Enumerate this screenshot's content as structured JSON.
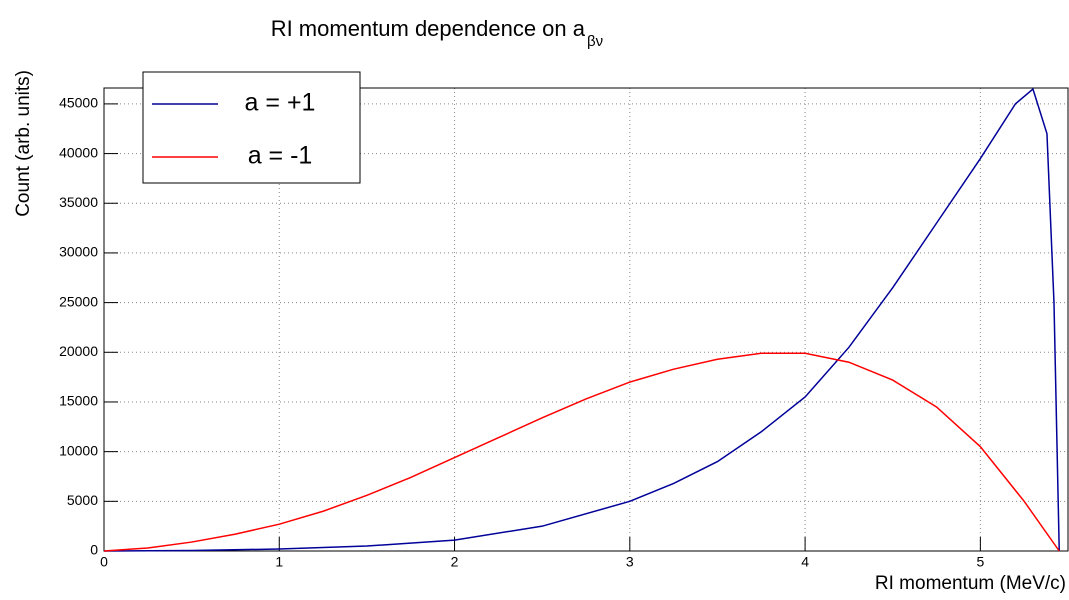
{
  "chart_data": {
    "type": "line",
    "title": "RI momentum dependence on a",
    "title_subscript": "βν",
    "x_label": "RI momentum (MeV/c)",
    "y_label": "Count (arb. units)",
    "xlim": [
      0,
      5.5
    ],
    "ylim": [
      0,
      46600
    ],
    "xticks": [
      0,
      1,
      2,
      3,
      4,
      5
    ],
    "yticks": [
      0,
      5000,
      10000,
      15000,
      20000,
      25000,
      30000,
      35000,
      40000,
      45000
    ],
    "grid": true,
    "legend": "top-left",
    "series": [
      {
        "name": "a = +1",
        "color": "#000099",
        "x": [
          0,
          0.5,
          1,
          1.5,
          2,
          2.5,
          3,
          3.25,
          3.5,
          3.75,
          4,
          4.25,
          4.5,
          4.75,
          5,
          5.2,
          5.3,
          5.38,
          5.42,
          5.45
        ],
        "values": [
          0,
          50,
          200,
          500,
          1100,
          2500,
          5000,
          6800,
          9000,
          12000,
          15500,
          20500,
          26500,
          33000,
          39500,
          45000,
          46500,
          42000,
          25000,
          0
        ]
      },
      {
        "name": "a = -1",
        "color": "#ff0000",
        "x": [
          0,
          0.25,
          0.5,
          0.75,
          1,
          1.25,
          1.5,
          1.75,
          2,
          2.25,
          2.5,
          2.75,
          3,
          3.25,
          3.5,
          3.75,
          4,
          4.25,
          4.5,
          4.75,
          5,
          5.25,
          5.45
        ],
        "values": [
          0,
          300,
          900,
          1700,
          2700,
          4000,
          5600,
          7400,
          9400,
          11400,
          13400,
          15300,
          17000,
          18300,
          19300,
          19900,
          19900,
          19000,
          17200,
          14500,
          10500,
          5000,
          0
        ]
      }
    ]
  }
}
